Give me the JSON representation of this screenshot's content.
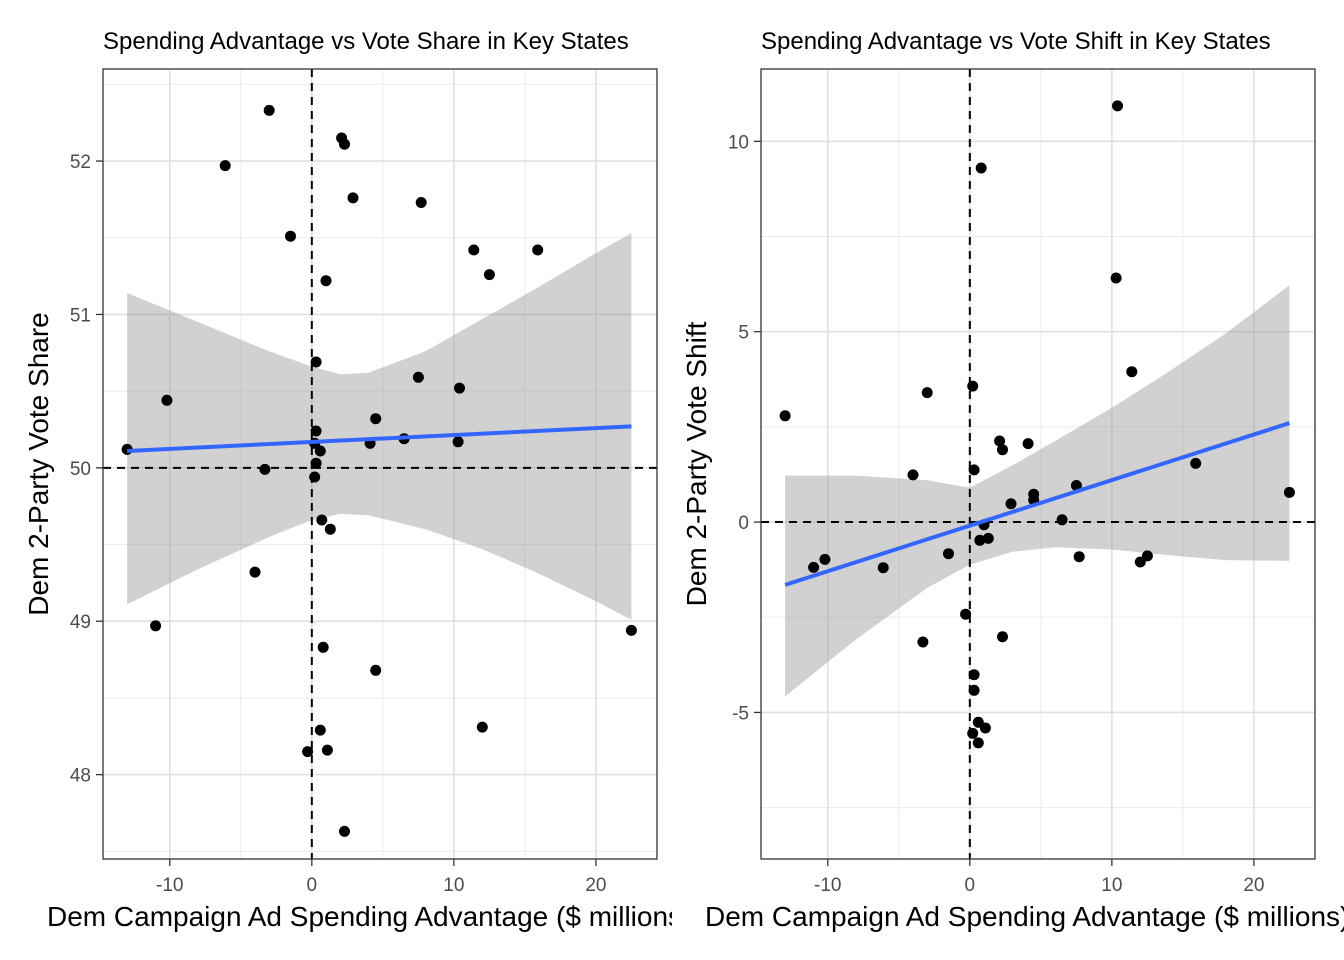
{
  "chart_data": [
    {
      "type": "scatter",
      "title": "Spending Advantage vs Vote Share in Key States",
      "xlabel": "Dem Campaign Ad Spending Advantage ($ millions)",
      "ylabel": "Dem 2-Party Vote Share",
      "xlim": [
        -14.7,
        24.3
      ],
      "ylim": [
        47.45,
        52.6
      ],
      "x_ticks": [
        -10,
        0,
        10,
        20
      ],
      "y_ticks": [
        48,
        49,
        50,
        51,
        52
      ],
      "x_tick_labels": [
        "-10",
        "0",
        "10",
        "20"
      ],
      "y_tick_labels": [
        "48",
        "49",
        "50",
        "51",
        "52"
      ],
      "grid": true,
      "reference_lines": {
        "x": 0,
        "y": 50
      },
      "points": [
        [
          -13,
          50.12
        ],
        [
          -11,
          48.97
        ],
        [
          -10.2,
          50.44
        ],
        [
          -6.1,
          51.97
        ],
        [
          -4,
          49.32
        ],
        [
          -3.3,
          49.99
        ],
        [
          -3,
          52.33
        ],
        [
          -1.5,
          51.51
        ],
        [
          -0.3,
          48.15
        ],
        [
          0.2,
          50.16
        ],
        [
          0.2,
          49.94
        ],
        [
          0.3,
          50.24
        ],
        [
          0.3,
          50.69
        ],
        [
          0.3,
          50.03
        ],
        [
          0.6,
          48.29
        ],
        [
          0.6,
          50.11
        ],
        [
          0.7,
          49.66
        ],
        [
          0.8,
          48.83
        ],
        [
          1,
          51.22
        ],
        [
          1.1,
          48.16
        ],
        [
          1.3,
          49.6
        ],
        [
          2.1,
          52.15
        ],
        [
          2.3,
          52.11
        ],
        [
          2.3,
          47.63
        ],
        [
          2.9,
          51.76
        ],
        [
          4.1,
          50.16
        ],
        [
          4.5,
          50.32
        ],
        [
          4.5,
          48.68
        ],
        [
          6.5,
          50.19
        ],
        [
          7.5,
          50.59
        ],
        [
          7.7,
          51.73
        ],
        [
          10.3,
          50.17
        ],
        [
          10.4,
          50.52
        ],
        [
          11.4,
          51.42
        ],
        [
          12,
          48.31
        ],
        [
          12.5,
          51.26
        ],
        [
          15.9,
          51.42
        ],
        [
          22.5,
          48.94
        ]
      ],
      "fit": {
        "method": "lm",
        "color": "#3366FF",
        "x": [
          -13,
          22.5
        ],
        "y": [
          50.11,
          50.27
        ]
      },
      "ribbon": {
        "x": [
          -13,
          -8,
          -3,
          0,
          2,
          4,
          8,
          12,
          16,
          20,
          22.5
        ],
        "lower": [
          49.11,
          49.34,
          49.55,
          49.66,
          49.7,
          49.69,
          49.6,
          49.47,
          49.31,
          49.13,
          49.01
        ],
        "upper": [
          51.14,
          50.95,
          50.76,
          50.66,
          50.61,
          50.62,
          50.76,
          50.97,
          51.18,
          51.4,
          51.53
        ]
      }
    },
    {
      "type": "scatter",
      "title": "Spending Advantage vs Vote Shift in Key States",
      "xlabel": "Dem Campaign Ad Spending Advantage ($ millions)",
      "ylabel": "Dem 2-Party Vote Shift",
      "xlim": [
        -14.7,
        24.3
      ],
      "ylim": [
        -8.85,
        11.9
      ],
      "x_ticks": [
        -10,
        0,
        10,
        20
      ],
      "y_ticks": [
        -5,
        0,
        5,
        10
      ],
      "x_tick_labels": [
        "-10",
        "0",
        "10",
        "20"
      ],
      "y_tick_labels": [
        "-5",
        "0",
        "5",
        "10"
      ],
      "grid": true,
      "reference_lines": {
        "x": 0,
        "y": 0
      },
      "points": [
        [
          -13,
          2.79
        ],
        [
          -11,
          -1.19
        ],
        [
          -10.2,
          -0.98
        ],
        [
          -6.1,
          -1.2
        ],
        [
          -4,
          1.24
        ],
        [
          -3.3,
          -3.15
        ],
        [
          -3,
          3.4
        ],
        [
          -1.5,
          -0.83
        ],
        [
          -0.3,
          -2.42
        ],
        [
          0.2,
          -5.55
        ],
        [
          0.2,
          3.57
        ],
        [
          0.3,
          1.37
        ],
        [
          0.3,
          -4.42
        ],
        [
          0.3,
          -4.01
        ],
        [
          0.6,
          -5.26
        ],
        [
          0.6,
          -5.8
        ],
        [
          0.7,
          -0.48
        ],
        [
          0.8,
          9.3
        ],
        [
          1,
          -0.07
        ],
        [
          1.1,
          -5.41
        ],
        [
          1.3,
          -0.43
        ],
        [
          2.1,
          2.13
        ],
        [
          2.3,
          1.9
        ],
        [
          2.3,
          -3.01
        ],
        [
          2.9,
          0.48
        ],
        [
          4.1,
          2.06
        ],
        [
          4.5,
          0.58
        ],
        [
          4.5,
          0.73
        ],
        [
          6.5,
          0.06
        ],
        [
          7.5,
          0.96
        ],
        [
          7.7,
          -0.91
        ],
        [
          10.3,
          6.41
        ],
        [
          10.4,
          10.93
        ],
        [
          11.4,
          3.95
        ],
        [
          12,
          -1.05
        ],
        [
          12.5,
          -0.89
        ],
        [
          15.9,
          1.54
        ],
        [
          22.5,
          0.78
        ]
      ],
      "fit": {
        "method": "lm",
        "color": "#3366FF",
        "x": [
          -13,
          22.5
        ],
        "y": [
          -1.65,
          2.6
        ]
      },
      "ribbon": {
        "x": [
          -13,
          -8,
          -3,
          0,
          3,
          6,
          10,
          14,
          18,
          22.5
        ],
        "lower": [
          -4.58,
          -3.08,
          -1.73,
          -1.12,
          -0.78,
          -0.66,
          -0.72,
          -0.87,
          -1.0,
          -1.02
        ],
        "upper": [
          1.22,
          1.22,
          1.1,
          0.9,
          1.49,
          2.13,
          3.0,
          3.95,
          4.95,
          6.22
        ]
      }
    }
  ]
}
